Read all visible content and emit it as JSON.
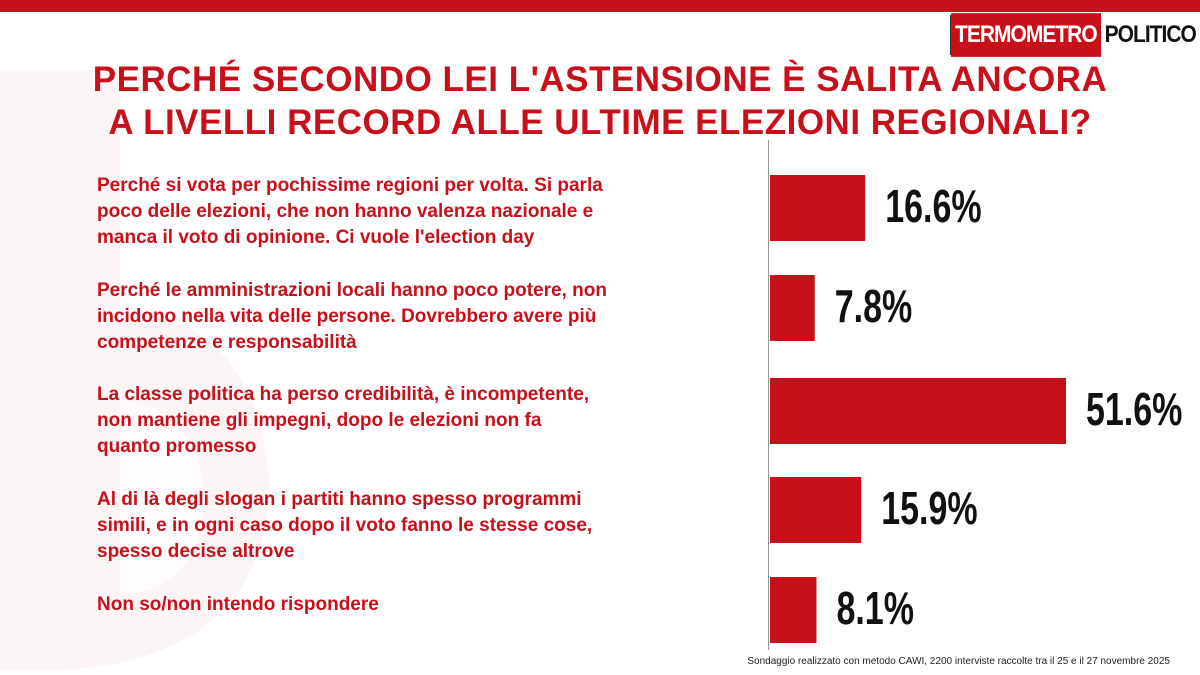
{
  "logo": {
    "part1": "TERMOMETRO",
    "part2": "POLITICO"
  },
  "title_line1": "PERCHÉ SECONDO LEI L'ASTENSIONE È SALITA ANCORA",
  "title_line2": "A LIVELLI RECORD ALLE ULTIME ELEZIONI REGIONALI?",
  "answers": [
    [
      "Perché si vota per pochissime regioni per volta. Si parla",
      "poco delle elezioni, che non hanno valenza nazionale e",
      "manca il voto di opinione. Ci vuole l'election day"
    ],
    [
      "Perché le amministrazioni locali hanno poco potere, non",
      "incidono nella vita delle persone. Dovrebbero avere più",
      "competenze e responsabilità"
    ],
    [
      "La classe politica ha perso credibilità, è incompetente,",
      "non mantiene gli impegni, dopo le elezioni non fa",
      "quanto promesso"
    ],
    [
      "Al di là degli slogan i partiti hanno spesso programmi",
      "simili, e in ogni caso dopo il voto fanno le stesse cose,",
      "spesso decise altrove"
    ],
    [
      "Non so/non intendo rispondere"
    ]
  ],
  "source": "Sondaggio realizzato con metodo CAWI, 2200 interviste raccolte tra il 25 e il 27 novembre  2025",
  "colors": {
    "accent": "#c8101a",
    "bar": "#c8101a"
  },
  "chart_data": {
    "type": "bar",
    "orientation": "horizontal",
    "categories": [
      "Perché si vota per pochissime regioni per volta. Si parla poco delle elezioni, che non hanno valenza nazionale e manca il voto di opinione. Ci vuole l'election day",
      "Perché le amministrazioni locali hanno poco potere, non incidono nella vita delle persone. Dovrebbero avere più competenze e responsabilità",
      "La classe politica ha perso credibilità, è incompetente, non mantiene gli impegni, dopo le elezioni non fa quanto promesso",
      "Al di là degli slogan i partiti hanno spesso programmi simili, e in ogni caso dopo il voto fanno le stesse cose, spesso decise altrove",
      "Non so/non intendo rispondere"
    ],
    "values": [
      16.6,
      7.8,
      51.6,
      15.9,
      8.1
    ],
    "value_labels": [
      "16.6%",
      "7.8%",
      "51.6%",
      "15.9%",
      "8.1%"
    ],
    "title": "PERCHÉ SECONDO LEI L'ASTENSIONE È SALITA ANCORA A LIVELLI RECORD ALLE ULTIME ELEZIONI REGIONALI?",
    "xlabel": "",
    "ylabel": "",
    "xlim": [
      0,
      51.6
    ],
    "grid": false,
    "legend": "none"
  }
}
